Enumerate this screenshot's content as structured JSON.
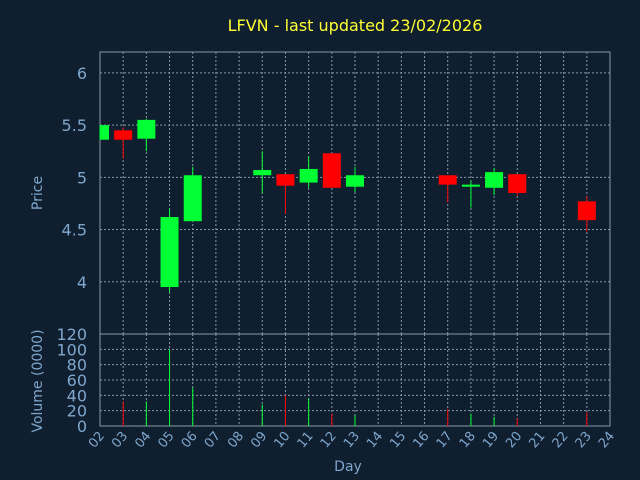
{
  "chart_data": {
    "type": "candlestick",
    "title": "LFVN - last updated 23/02/2026",
    "xlabel": "Day",
    "ylabel_price": "Price",
    "ylabel_volume": "Volume (0000)",
    "x_ticks": [
      "02",
      "03",
      "04",
      "05",
      "06",
      "07",
      "08",
      "09",
      "10",
      "11",
      "12",
      "13",
      "14",
      "15",
      "16",
      "17",
      "18",
      "19",
      "20",
      "21",
      "22",
      "23",
      "24"
    ],
    "price_ylim": [
      3.5,
      6.2
    ],
    "price_ticks": [
      4,
      4.5,
      5,
      5.5,
      6
    ],
    "volume_ylim": [
      0,
      120
    ],
    "volume_ticks": [
      0,
      20,
      40,
      60,
      80,
      100,
      120
    ],
    "grid": true,
    "colors": {
      "background": "#0f1f2f",
      "up": "#00ff33",
      "down": "#ff0000",
      "grid": "#8899aa",
      "title": "#ffff33",
      "axis_text": "#7fa6cc"
    },
    "candles": [
      {
        "day": 2,
        "open": 5.36,
        "high": 5.5,
        "low": 5.36,
        "close": 5.5,
        "volume": 0
      },
      {
        "day": 3,
        "open": 5.45,
        "high": 5.48,
        "low": 5.18,
        "close": 5.36,
        "volume": 32
      },
      {
        "day": 4,
        "open": 5.37,
        "high": 5.56,
        "low": 5.25,
        "close": 5.55,
        "volume": 32
      },
      {
        "day": 5,
        "open": 3.95,
        "high": 4.7,
        "low": 3.9,
        "close": 4.62,
        "volume": 100
      },
      {
        "day": 6,
        "open": 4.58,
        "high": 5.1,
        "low": 4.58,
        "close": 5.02,
        "volume": 50
      },
      {
        "day": 9,
        "open": 5.02,
        "high": 5.25,
        "low": 4.85,
        "close": 5.07,
        "volume": 28
      },
      {
        "day": 10,
        "open": 5.03,
        "high": 5.03,
        "low": 4.65,
        "close": 4.92,
        "volume": 40
      },
      {
        "day": 11,
        "open": 4.95,
        "high": 5.2,
        "low": 4.9,
        "close": 5.08,
        "volume": 36
      },
      {
        "day": 12,
        "open": 5.23,
        "high": 5.23,
        "low": 4.9,
        "close": 4.9,
        "volume": 16
      },
      {
        "day": 13,
        "open": 4.91,
        "high": 5.1,
        "low": 4.86,
        "close": 5.02,
        "volume": 14
      },
      {
        "day": 17,
        "open": 5.02,
        "high": 5.02,
        "low": 4.76,
        "close": 4.93,
        "volume": 22
      },
      {
        "day": 18,
        "open": 4.91,
        "high": 4.97,
        "low": 4.71,
        "close": 4.93,
        "volume": 16
      },
      {
        "day": 19,
        "open": 4.9,
        "high": 5.09,
        "low": 4.83,
        "close": 5.05,
        "volume": 12
      },
      {
        "day": 20,
        "open": 5.03,
        "high": 5.03,
        "low": 4.82,
        "close": 4.85,
        "volume": 10
      },
      {
        "day": 23,
        "open": 4.77,
        "high": 4.82,
        "low": 4.48,
        "close": 4.59,
        "volume": 18
      }
    ]
  }
}
